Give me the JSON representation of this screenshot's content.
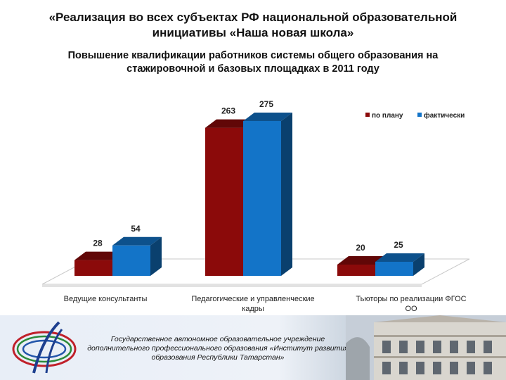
{
  "title": "«Реализация во всех субъектах РФ национальной образовательной инициативы «Наша новая школа»",
  "subtitle": "Повышение квалификации работников системы общего образования на стажировочной и базовых площадках  в 2011 году",
  "chart_data": {
    "type": "bar",
    "categories": [
      "Ведущие консультанты",
      "Педагогические  и управленческие кадры",
      "Тьюторы по реализации ФГОС ОО"
    ],
    "series": [
      {
        "name": "по плану",
        "values": [
          28,
          263,
          20
        ],
        "color": "#8b0a0a"
      },
      {
        "name": "фактически",
        "values": [
          54,
          275,
          25
        ],
        "color": "#1374c8"
      }
    ],
    "ylim": [
      0,
      300
    ],
    "legend": "top-right",
    "grid": false
  },
  "footer": {
    "text": "Государственное автономное образовательное учреждение дополнительного профессионального образования «Институт развития образования Республики Татарстан»"
  }
}
